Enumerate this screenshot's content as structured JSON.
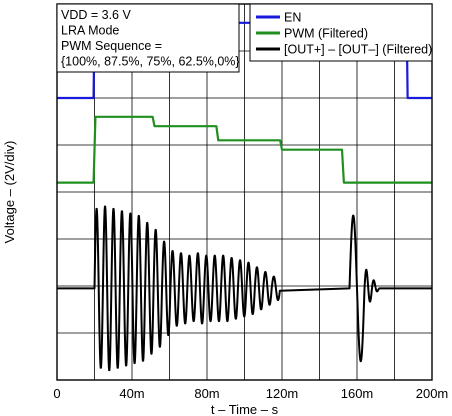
{
  "chart_data": {
    "type": "line",
    "title": "",
    "xlabel": "t – Time – s",
    "ylabel": "Voltage – (2V/div)",
    "xlim": [
      0,
      200
    ],
    "x_unit": "ms",
    "y_divisions": 8,
    "volts_per_div": 2,
    "grid": true,
    "x_ticks": [
      {
        "value": 0,
        "label": "0"
      },
      {
        "value": 40,
        "label": "40m"
      },
      {
        "value": 80,
        "label": "80m"
      },
      {
        "value": 120,
        "label": "120m"
      },
      {
        "value": 160,
        "label": "160m"
      },
      {
        "value": 200,
        "label": "200m"
      }
    ],
    "annotation_lines": [
      "VDD = 3.6 V",
      "LRA Mode",
      "PWM Sequence =",
      "{100%, 87.5%, 75%, 62.5%,0%}"
    ],
    "legend_position": "top-right",
    "series": [
      {
        "name": "EN",
        "color": "#1a1adc",
        "points": [
          [
            0,
            6.0
          ],
          [
            19.5,
            6.0
          ],
          [
            20,
            7.6
          ],
          [
            186.5,
            7.6
          ],
          [
            187,
            6.0
          ],
          [
            200,
            6.0
          ]
        ]
      },
      {
        "name": "PWM (Filtered)",
        "color": "#1f8f1f",
        "points": [
          [
            0,
            4.2
          ],
          [
            19.5,
            4.2
          ],
          [
            20.5,
            5.6
          ],
          [
            51,
            5.6
          ],
          [
            52,
            5.4
          ],
          [
            85,
            5.4
          ],
          [
            86,
            5.1
          ],
          [
            119,
            5.1
          ],
          [
            120,
            4.9
          ],
          [
            152,
            4.9
          ],
          [
            153,
            4.2
          ],
          [
            200,
            4.2
          ]
        ]
      },
      {
        "name": "[OUT+] – [OUT–] (Filtered)",
        "color": "#000000",
        "baseline_div": 1.95,
        "start_ms": 20,
        "period_ms": 4.5,
        "peak_divs": [
          1.7,
          1.75,
          1.7,
          1.65,
          1.6,
          1.55,
          1.4,
          1.25,
          1.0,
          0.8,
          0.75,
          0.7,
          0.75,
          0.7,
          0.7,
          0.7,
          0.65,
          0.6,
          0.55,
          0.45,
          0.35,
          0.25
        ],
        "tail": {
          "spike_start_ms": 156,
          "spike_end_ms": 164,
          "spike_peak_div": 1.55,
          "decay_end_ms": 172
        }
      }
    ]
  }
}
